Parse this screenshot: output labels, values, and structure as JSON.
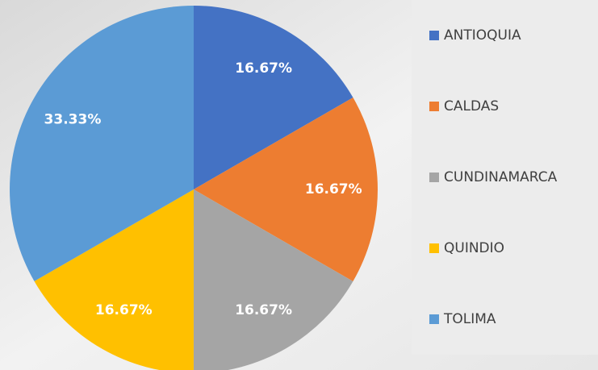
{
  "chart_data": {
    "type": "pie",
    "categories": [
      "ANTIOQUIA",
      "CALDAS",
      "CUNDINAMARCA",
      "QUINDIO",
      "TOLIMA"
    ],
    "values": [
      16.67,
      16.67,
      16.67,
      16.67,
      33.33
    ],
    "value_labels": [
      "16.67%",
      "16.67%",
      "16.67%",
      "16.67%",
      "33.33%"
    ],
    "colors": [
      "#4472c4",
      "#ed7d31",
      "#a5a5a5",
      "#ffc000",
      "#5b9bd5"
    ],
    "legend": "right"
  }
}
